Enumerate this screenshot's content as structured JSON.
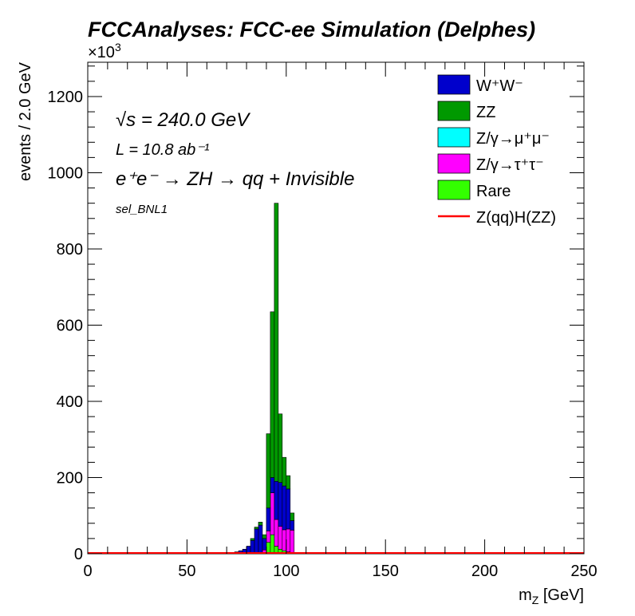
{
  "chart_data": {
    "type": "bar",
    "title": "FCCAnalyses: FCC-ee Simulation (Delphes)",
    "xlabel": "m_Z [GeV]",
    "ylabel": "events / 2.0 GeV",
    "y_multiplier": "×10^3",
    "xlim": [
      0,
      250
    ],
    "ylim": [
      0,
      1290
    ],
    "xticks": [
      0,
      50,
      100,
      150,
      200,
      250
    ],
    "yticks": [
      0,
      200,
      400,
      600,
      800,
      1000,
      1200
    ],
    "stacked": true,
    "legend_position": "top-right",
    "annotations": {
      "sqrt_s": "√s = 240.0 GeV",
      "lumi": "L = 10.8 ab⁻¹",
      "process": "e⁺e⁻ → ZH → qq + Invisible",
      "selection": "sel_BNL1"
    },
    "bin_edges": [
      70,
      72,
      74,
      76,
      78,
      80,
      82,
      84,
      86,
      88,
      90,
      92,
      94,
      96,
      98,
      100,
      102,
      104,
      106
    ],
    "series": [
      {
        "name": "Rare",
        "color": "#33ff00",
        "values": [
          0,
          0,
          0,
          0,
          0,
          0,
          0,
          0,
          0,
          2,
          30,
          50,
          20,
          12,
          8,
          5,
          2,
          0
        ]
      },
      {
        "name": "Z/γ→τ⁺τ⁻",
        "color": "#ff00ff",
        "values": [
          0,
          0,
          0,
          0,
          0,
          0,
          0,
          0,
          0,
          8,
          30,
          110,
          70,
          60,
          55,
          60,
          60,
          0
        ]
      },
      {
        "name": "Z/γ→μ⁺μ⁻",
        "color": "#00ffff",
        "values": [
          0,
          0,
          0,
          0,
          0,
          0,
          0,
          0,
          0,
          0,
          0,
          0,
          0,
          0,
          0,
          0,
          0,
          0
        ]
      },
      {
        "name": "W⁺W⁻",
        "color": "#0000cc",
        "values": [
          1,
          3,
          5,
          8,
          12,
          20,
          35,
          65,
          75,
          30,
          60,
          40,
          100,
          115,
          115,
          105,
          25,
          0
        ]
      },
      {
        "name": "ZZ",
        "color": "#009900",
        "values": [
          0,
          0,
          0,
          0,
          0,
          0,
          5,
          5,
          8,
          10,
          195,
          435,
          730,
          180,
          75,
          35,
          20,
          0
        ]
      }
    ],
    "signal": {
      "name": "Z(qq)H(ZZ)",
      "color": "#ff0000"
    }
  }
}
